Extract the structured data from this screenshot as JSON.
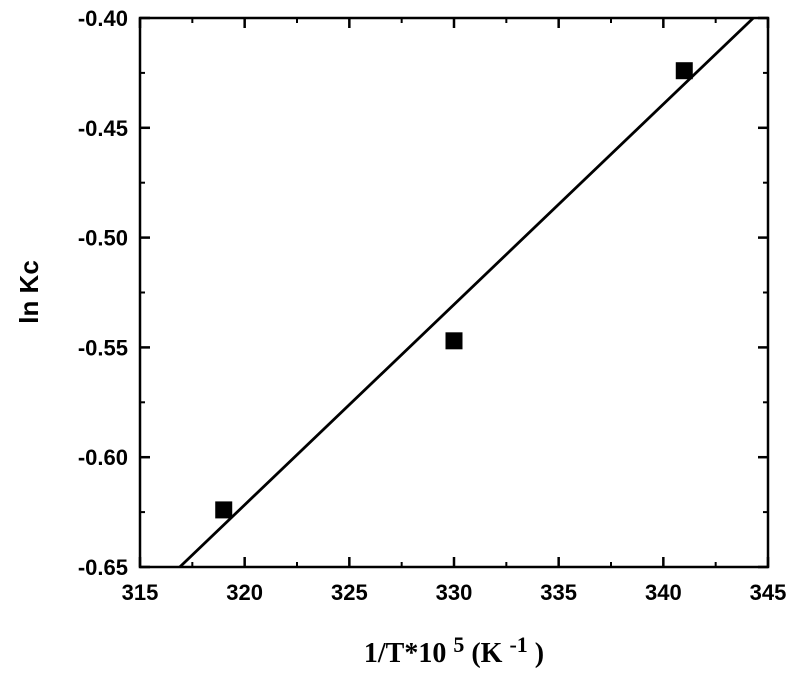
{
  "chart_data": {
    "type": "scatter",
    "title": "",
    "xlabel": {
      "main": "1/T*10",
      "sup1": "5",
      "mid": " (K",
      "sup2": "-1",
      "end": ")"
    },
    "ylabel": "ln Kc",
    "xlim": [
      315,
      345
    ],
    "ylim": [
      -0.65,
      -0.4
    ],
    "xticks": [
      315,
      320,
      325,
      330,
      335,
      340,
      345
    ],
    "xtick_labels": [
      "315",
      "320",
      "325",
      "330",
      "335",
      "340",
      "345"
    ],
    "yticks": [
      -0.65,
      -0.6,
      -0.55,
      -0.5,
      -0.45,
      -0.4
    ],
    "ytick_labels": [
      "-0.65",
      "-0.60",
      "-0.55",
      "-0.50",
      "-0.45",
      "-0.40"
    ],
    "grid": false,
    "legend": "none",
    "points": [
      {
        "x": 319,
        "y": -0.624
      },
      {
        "x": 330,
        "y": -0.547
      },
      {
        "x": 341,
        "y": -0.424
      }
    ],
    "fit_line": {
      "x": [
        316.9,
        344.3
      ],
      "y": [
        -0.65,
        -0.4
      ]
    },
    "colors": {
      "marker": "#000000",
      "line": "#000000",
      "axes": "#000000"
    }
  }
}
